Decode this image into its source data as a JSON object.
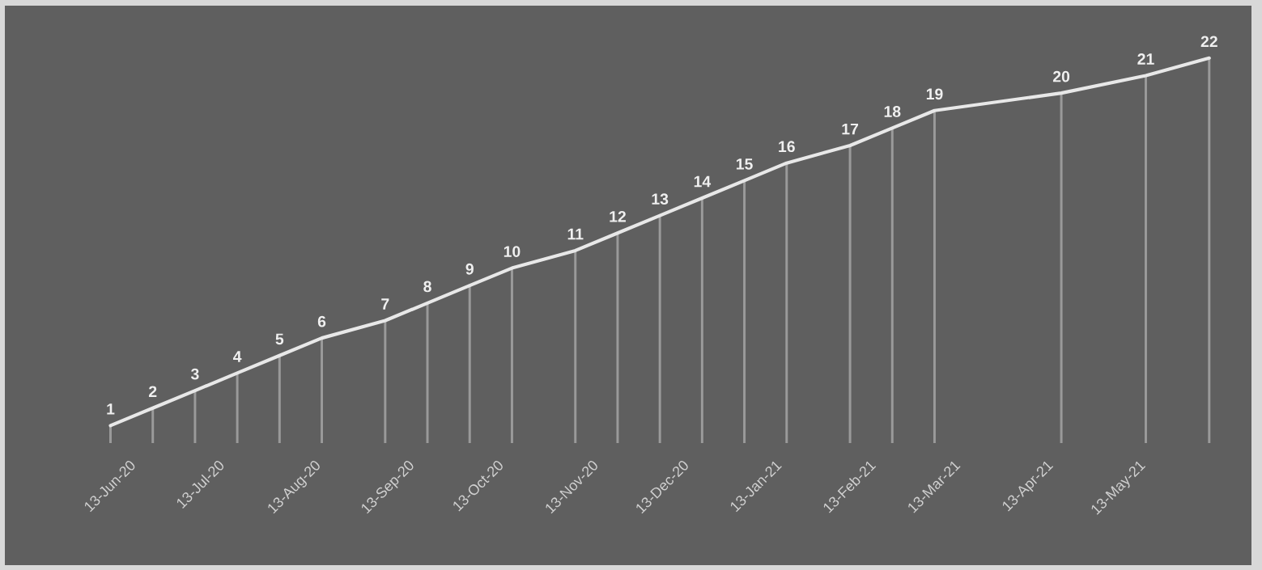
{
  "chart_data": {
    "type": "line",
    "x": [
      "2020-06-13",
      "2020-06-27",
      "2020-07-11",
      "2020-07-25",
      "2020-08-08",
      "2020-08-22",
      "2020-09-12",
      "2020-09-26",
      "2020-10-10",
      "2020-10-24",
      "2020-11-14",
      "2020-11-28",
      "2020-12-12",
      "2020-12-26",
      "2021-01-09",
      "2021-01-23",
      "2021-02-13",
      "2021-02-27",
      "2021-03-13",
      "2021-04-24",
      "2021-05-22",
      "2021-06-12"
    ],
    "series": [
      {
        "color": "#e8e8e8",
        "values": [
          1,
          2,
          3,
          4,
          5,
          6,
          7,
          8,
          9,
          10,
          11,
          12,
          13,
          14,
          15,
          16,
          17,
          18,
          19,
          20,
          21,
          22
        ]
      },
      {
        "type": "bar",
        "color": "#9a9a9a",
        "values": [
          1,
          2,
          3,
          4,
          5,
          6,
          7,
          8,
          9,
          10,
          11,
          12,
          13,
          14,
          15,
          16,
          17,
          18,
          19,
          20,
          21,
          22
        ],
        "value_labels": [
          "1",
          "2",
          "3",
          "4",
          "5",
          "6",
          "7",
          "8",
          "9",
          "10",
          "11",
          "12",
          "13",
          "14",
          "15",
          "16",
          "17",
          "18",
          "19",
          "20",
          "21",
          "22"
        ]
      }
    ],
    "xlim": [
      "2020-05-09",
      "2021-06-26"
    ],
    "xticks": [
      {
        "value": "2020-06-13",
        "label": "13-Jun-20"
      },
      {
        "value": "2020-07-13",
        "label": "13-Jul-20"
      },
      {
        "value": "2020-08-13",
        "label": "13-Aug-20"
      },
      {
        "value": "2020-09-13",
        "label": "13-Sep-20"
      },
      {
        "value": "2020-10-13",
        "label": "13-Oct-20"
      },
      {
        "value": "2020-11-13",
        "label": "13-Nov-20"
      },
      {
        "value": "2020-12-13",
        "label": "13-Dec-20"
      },
      {
        "value": "2021-01-13",
        "label": "13-Jan-21"
      },
      {
        "value": "2021-02-13",
        "label": "13-Feb-21"
      },
      {
        "value": "2021-03-13",
        "label": "13-Mar-21"
      },
      {
        "value": "2021-04-13",
        "label": "13-Apr-21"
      },
      {
        "value": "2021-05-13",
        "label": "13-May-21"
      }
    ],
    "tick_labels": "x"
  }
}
